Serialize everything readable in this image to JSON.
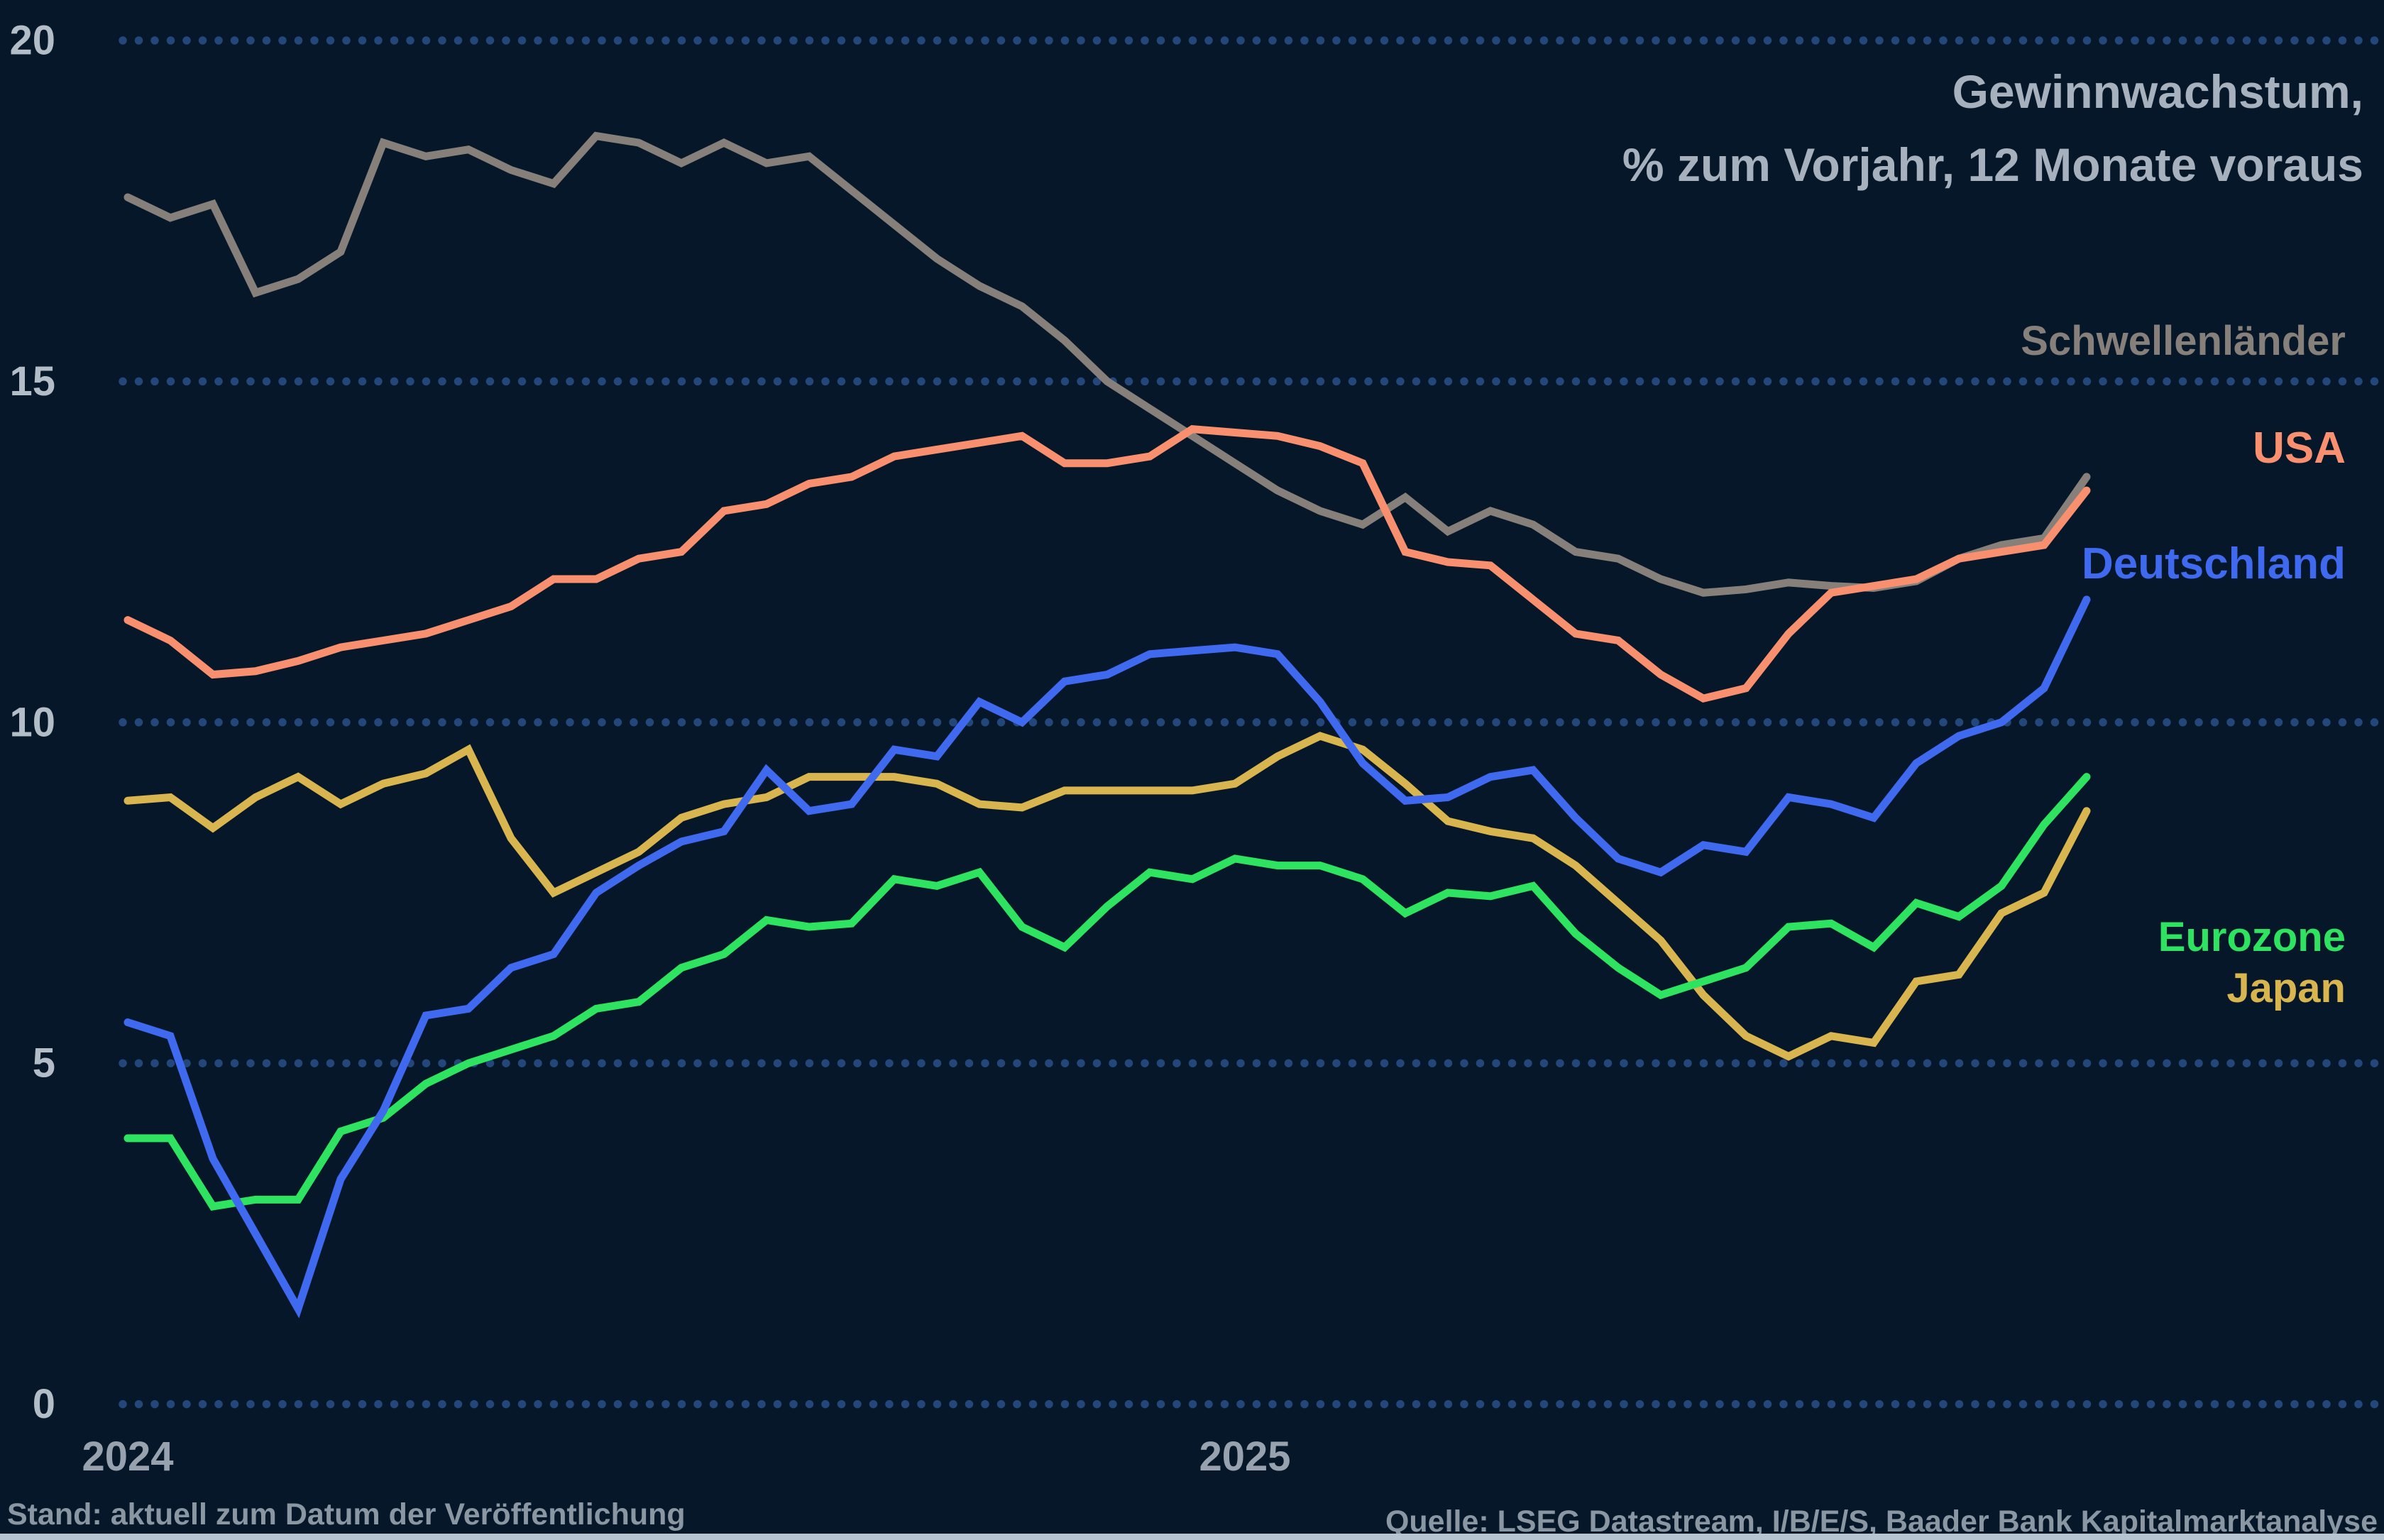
{
  "title": {
    "line1": "Gewinnwachstum,",
    "line2": "% zum Vorjahr, 12 Monate voraus"
  },
  "footer": {
    "left": "Stand: aktuell zum Datum der Veröffentlichung",
    "right": "Quelle: LSEG Datastream, I/B/E/S, Baader Bank Kapitalmarktanalyse"
  },
  "colors": {
    "background": "#051729",
    "grid_dot": "#23477B",
    "axis_text": "#B3BDC7",
    "title_text": "#A7B0BD",
    "tick_text": "#97A2AE",
    "footer_text": "#8A96A2",
    "bottom_bar": "#B6C4D1"
  },
  "chart_data": {
    "type": "line",
    "title": "Gewinnwachstum, % zum Vorjahr, 12 Monate voraus",
    "xlabel": "",
    "ylabel": "",
    "ylim": [
      0,
      20
    ],
    "y_ticks": [
      0,
      5,
      10,
      15,
      20
    ],
    "x_tick_labels": [
      "2024",
      "2025"
    ],
    "grid": "dotted-horizontal",
    "legend_position": "right-inline",
    "series": [
      {
        "name": "Schwellenländer",
        "color": "#87807A",
        "values": [
          17.7,
          17.4,
          17.6,
          16.3,
          16.5,
          16.9,
          18.5,
          18.3,
          18.4,
          18.1,
          17.9,
          18.6,
          18.5,
          18.2,
          18.5,
          18.2,
          18.3,
          17.8,
          17.3,
          16.8,
          16.4,
          16.1,
          15.6,
          15.0,
          14.6,
          14.2,
          13.8,
          13.4,
          13.1,
          12.9,
          13.3,
          12.8,
          13.1,
          12.9,
          12.5,
          12.4,
          12.1,
          11.9,
          11.95,
          12.05,
          12.0,
          11.97,
          12.07,
          12.4,
          12.6,
          12.7,
          13.6
        ]
      },
      {
        "name": "USA",
        "color": "#F8906F",
        "values": [
          11.5,
          11.2,
          10.7,
          10.75,
          10.9,
          11.1,
          11.2,
          11.3,
          11.5,
          11.7,
          12.1,
          12.1,
          12.4,
          12.5,
          13.1,
          13.2,
          13.5,
          13.6,
          13.9,
          14.0,
          14.1,
          14.2,
          13.8,
          13.8,
          13.9,
          14.3,
          14.25,
          14.2,
          14.05,
          13.8,
          12.5,
          12.35,
          12.3,
          11.8,
          11.3,
          11.2,
          10.7,
          10.35,
          10.5,
          11.3,
          11.9,
          12.0,
          12.1,
          12.4,
          12.5,
          12.6,
          13.4
        ]
      },
      {
        "name": "Deutschland",
        "color": "#3F6AF0",
        "values": [
          5.6,
          5.4,
          3.6,
          2.5,
          1.4,
          3.3,
          4.3,
          5.7,
          5.8,
          6.4,
          6.6,
          7.5,
          7.9,
          8.25,
          8.4,
          9.3,
          8.7,
          8.8,
          9.6,
          9.5,
          10.3,
          10.0,
          10.6,
          10.7,
          11.0,
          11.05,
          11.1,
          11.0,
          10.3,
          9.4,
          8.85,
          8.9,
          9.2,
          9.3,
          8.6,
          8.0,
          7.8,
          8.2,
          8.1,
          8.9,
          8.8,
          8.6,
          9.4,
          9.8,
          10.0,
          10.5,
          11.8
        ]
      },
      {
        "name": "Eurozone",
        "color": "#2EE35F",
        "values": [
          3.9,
          3.9,
          2.9,
          3.0,
          3.0,
          4.0,
          4.2,
          4.7,
          5.0,
          5.2,
          5.4,
          5.8,
          5.9,
          6.4,
          6.6,
          7.1,
          7.0,
          7.05,
          7.7,
          7.6,
          7.8,
          7.0,
          6.7,
          7.3,
          7.8,
          7.7,
          8.0,
          7.9,
          7.9,
          7.7,
          7.2,
          7.5,
          7.45,
          7.6,
          6.9,
          6.4,
          6.0,
          6.2,
          6.4,
          7.0,
          7.05,
          6.7,
          7.35,
          7.15,
          7.6,
          8.5,
          9.2
        ]
      },
      {
        "name": "Japan",
        "color": "#D9B550",
        "values": [
          8.85,
          8.9,
          8.45,
          8.9,
          9.2,
          8.8,
          9.1,
          9.25,
          9.6,
          8.3,
          7.5,
          7.8,
          8.1,
          8.6,
          8.8,
          8.9,
          9.2,
          9.2,
          9.2,
          9.1,
          8.8,
          8.75,
          9.0,
          9.0,
          9.0,
          9.0,
          9.1,
          9.5,
          9.8,
          9.6,
          9.1,
          8.55,
          8.4,
          8.3,
          7.9,
          7.35,
          6.8,
          6.0,
          5.4,
          5.1,
          5.4,
          5.3,
          6.2,
          6.3,
          7.2,
          7.5,
          8.7
        ]
      }
    ]
  }
}
